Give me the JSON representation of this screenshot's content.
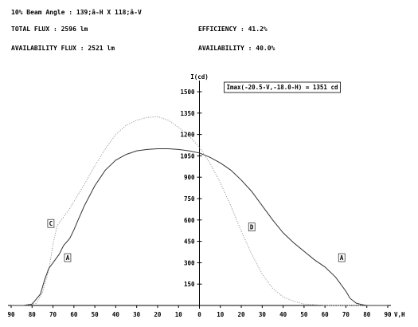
{
  "header": {
    "beam_angle": "10% Beam Angle : 139;â-H X 118;â-V",
    "total_flux": "TOTAL FLUX : 2596 lm",
    "efficiency": "EFFICIENCY : 41.2%",
    "availability_flux": "AVAILABILITY FLUX : 2521 lm",
    "availability": "AVAILABILITY : 40.0%"
  },
  "chart_data": {
    "type": "line",
    "ylabel": "I(cd)",
    "xlabel": "V,H",
    "imax_annotation": "Imax(-20.5-V,-18.0-H) = 1351 cd",
    "x_ticks": [
      "90",
      "80",
      "70",
      "60",
      "50",
      "40",
      "30",
      "20",
      "10",
      "0",
      "10",
      "20",
      "30",
      "40",
      "50",
      "60",
      "70",
      "80",
      "90"
    ],
    "y_ticks": [
      "150",
      "300",
      "450",
      "600",
      "750",
      "900",
      "1050",
      "1200",
      "1350",
      "1500"
    ],
    "xlim": [
      -90,
      90
    ],
    "ylim": [
      0,
      1500
    ],
    "series": [
      {
        "name": "C",
        "style": "dotted",
        "color": "#9a9a9a",
        "x": [
          -90,
          -82,
          -78,
          -75,
          -72,
          -70,
          -68,
          -65,
          -62,
          -60,
          -55,
          -50,
          -45,
          -40,
          -35,
          -30,
          -25,
          -20,
          -15,
          -10,
          -5,
          0,
          5,
          10,
          15,
          20,
          25,
          30,
          35,
          40,
          45,
          50,
          55,
          60,
          65,
          70,
          75,
          80,
          90
        ],
        "y": [
          0,
          0,
          15,
          90,
          250,
          430,
          560,
          620,
          680,
          730,
          850,
          980,
          1100,
          1200,
          1265,
          1300,
          1320,
          1325,
          1300,
          1250,
          1190,
          1110,
          1000,
          860,
          700,
          520,
          360,
          220,
          120,
          60,
          30,
          10,
          5,
          0,
          0,
          0,
          0,
          0,
          0
        ]
      },
      {
        "name": "A",
        "style": "solid",
        "color": "#333333",
        "x": [
          -90,
          -84,
          -80,
          -76,
          -74,
          -72,
          -70,
          -67,
          -65,
          -62,
          -60,
          -58,
          -55,
          -50,
          -45,
          -40,
          -35,
          -30,
          -25,
          -20,
          -15,
          -10,
          -5,
          0,
          5,
          10,
          15,
          20,
          25,
          30,
          35,
          40,
          45,
          50,
          55,
          60,
          65,
          67,
          70,
          72,
          75,
          78,
          80,
          90
        ],
        "y": [
          0,
          0,
          10,
          80,
          180,
          260,
          300,
          360,
          420,
          470,
          530,
          600,
          700,
          840,
          950,
          1020,
          1060,
          1085,
          1095,
          1100,
          1100,
          1095,
          1085,
          1070,
          1040,
          1000,
          950,
          880,
          800,
          700,
          600,
          510,
          440,
          380,
          320,
          270,
          200,
          160,
          100,
          50,
          15,
          5,
          0,
          0
        ]
      }
    ],
    "curve_labels": [
      {
        "text": "C",
        "x": -71,
        "y": 570
      },
      {
        "text": "A",
        "x": -63,
        "y": 330
      },
      {
        "text": "D",
        "x": 25,
        "y": 545
      },
      {
        "text": "A",
        "x": 68,
        "y": 330
      }
    ]
  }
}
